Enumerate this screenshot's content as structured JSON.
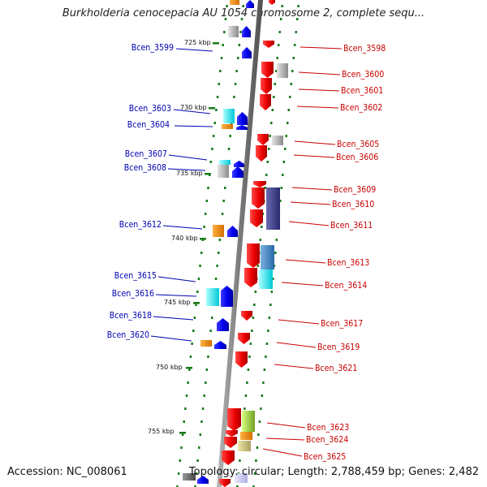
{
  "title": "Burkholderia cenocepacia AU 1054 chromosome 2, complete sequ...",
  "footer": {
    "accession": "Accession: NC_008061",
    "stats": "Topology: circular; Length: 2,788,459 bp; Genes: 2,482"
  },
  "kbp_labels": [
    "725 kbp",
    "730 kbp",
    "735 kbp",
    "740 kbp",
    "745 kbp",
    "750 kbp",
    "755 kbp"
  ],
  "genes_left": [
    "Bcen_3599",
    "Bcen_3603",
    "Bcen_3604",
    "Bcen_3607",
    "Bcen_3608",
    "Bcen_3612",
    "Bcen_3615",
    "Bcen_3616",
    "Bcen_3618",
    "Bcen_3620"
  ],
  "genes_right": [
    "Bcen_3598",
    "Bcen_3600",
    "Bcen_3601",
    "Bcen_3602",
    "Bcen_3605",
    "Bcen_3606",
    "Bcen_3609",
    "Bcen_3610",
    "Bcen_3611",
    "Bcen_3613",
    "Bcen_3614",
    "Bcen_3617",
    "Bcen_3619",
    "Bcen_3621",
    "Bcen_3623",
    "Bcen_3624",
    "Bcen_3625"
  ],
  "colors": {
    "forward_strand": "#0000ff",
    "reverse_strand": "#ff0000",
    "backbone": "#888888",
    "tick": "#1a7a1a",
    "left_label": "#0000b0",
    "right_label": "#c80000"
  }
}
